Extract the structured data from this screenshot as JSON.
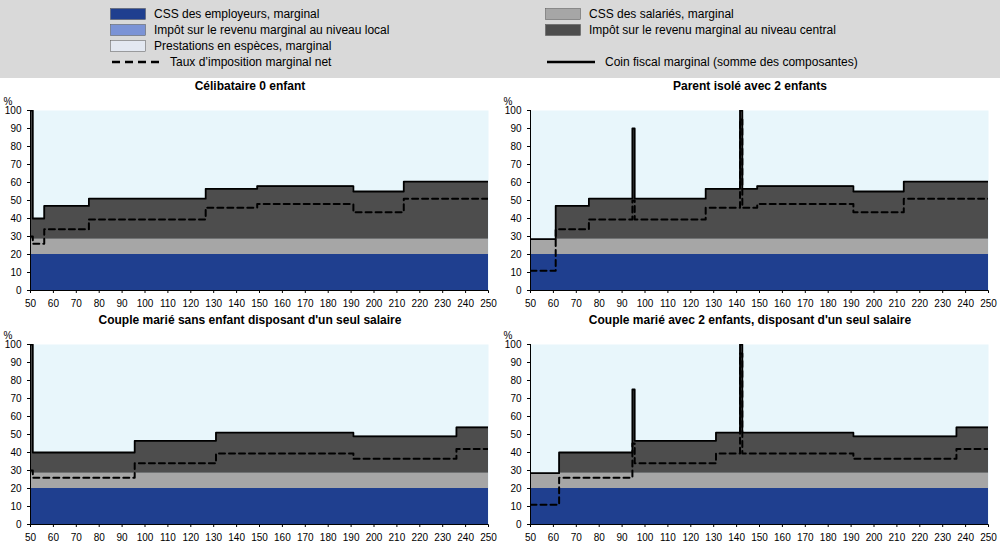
{
  "chart_data": [
    {
      "type": "area",
      "title": "Célibataire 0 enfant",
      "stacked": true,
      "grid": false,
      "ylim": [
        0,
        100
      ],
      "yticks": [
        0,
        10,
        20,
        30,
        40,
        50,
        60,
        70,
        80,
        90,
        100
      ],
      "y_label": "%",
      "xlim": [
        50,
        250
      ],
      "xticks": [
        50,
        60,
        70,
        80,
        90,
        100,
        110,
        120,
        130,
        140,
        150,
        160,
        170,
        180,
        190,
        200,
        210,
        220,
        230,
        240,
        250
      ],
      "x": [
        50,
        51,
        56,
        75.5,
        126.5,
        149,
        191,
        213,
        250
      ],
      "series": [
        {
          "name": "CSS des employeurs, marginal",
          "color": "#1f3f8f",
          "type": "area",
          "values": [
            20,
            20,
            20,
            20,
            20,
            20,
            20,
            20,
            20
          ]
        },
        {
          "name": "CSS des salariés, marginal",
          "color": "#a6a6a6",
          "type": "area",
          "values": [
            8.5,
            8.5,
            8.5,
            8.5,
            8.5,
            8.5,
            8.5,
            8.5,
            8.5
          ]
        },
        {
          "name": "Impôt sur le revenu marginal au niveau local",
          "color": "#7b93d6",
          "type": "area",
          "values": [
            0,
            0,
            0,
            0,
            0,
            0,
            0,
            0,
            0
          ]
        },
        {
          "name": "Impôt sur le revenu marginal au niveau central",
          "color": "#4d4d4d",
          "type": "area",
          "values": [
            71.5,
            11.5,
            18.5,
            22.5,
            28,
            29.5,
            26.5,
            32,
            32
          ]
        },
        {
          "name": "Prestations en espèces, marginal",
          "color": "#e3e8f1",
          "type": "area",
          "values": [
            0,
            0,
            0,
            0,
            0,
            0,
            0,
            0,
            0
          ]
        },
        {
          "name": "Taux d’imposition marginal net",
          "color": "#000000",
          "type": "line",
          "line_style": "dashed",
          "values": [
            30,
            26,
            34,
            39.5,
            46,
            48,
            43.5,
            51,
            51
          ]
        },
        {
          "name": "Coin fiscal marginal (somme des composantes)",
          "color": "#000000",
          "type": "line",
          "line_style": "solid",
          "values": [
            100,
            40,
            47,
            51,
            56.5,
            58,
            55,
            60.5,
            60.5
          ]
        }
      ]
    },
    {
      "type": "area",
      "title": "Parent isolé avec 2 enfants",
      "stacked": true,
      "grid": false,
      "ylim": [
        0,
        100
      ],
      "yticks": [
        0,
        10,
        20,
        30,
        40,
        50,
        60,
        70,
        80,
        90,
        100
      ],
      "y_label": "%",
      "xlim": [
        50,
        250
      ],
      "xticks": [
        50,
        60,
        70,
        80,
        90,
        100,
        110,
        120,
        130,
        140,
        150,
        160,
        170,
        180,
        190,
        200,
        210,
        220,
        230,
        240,
        250
      ],
      "x": [
        50,
        61,
        75.5,
        94.5,
        95.5,
        126.5,
        141.5,
        142.5,
        149,
        191,
        213,
        250
      ],
      "series": [
        {
          "name": "CSS des employeurs, marginal",
          "color": "#1f3f8f",
          "type": "area",
          "values": [
            20,
            20,
            20,
            20,
            20,
            20,
            20,
            20,
            20,
            20,
            20,
            20
          ]
        },
        {
          "name": "CSS des salariés, marginal",
          "color": "#a6a6a6",
          "type": "area",
          "values": [
            8.5,
            8.5,
            8.5,
            8.5,
            8.5,
            8.5,
            8.5,
            8.5,
            8.5,
            8.5,
            8.5,
            8.5
          ]
        },
        {
          "name": "Impôt sur le revenu marginal au niveau local",
          "color": "#7b93d6",
          "type": "area",
          "values": [
            0,
            0,
            0,
            0,
            0,
            0,
            0,
            0,
            0,
            0,
            0,
            0
          ]
        },
        {
          "name": "Impôt sur le revenu marginal au niveau central",
          "color": "#4d4d4d",
          "type": "area",
          "values": [
            0,
            18.5,
            22.5,
            61.5,
            22.5,
            28,
            71.5,
            28,
            29.5,
            26.5,
            32,
            32
          ]
        },
        {
          "name": "Prestations en espèces, marginal",
          "color": "#e3e8f1",
          "type": "area",
          "values": [
            0,
            0,
            0,
            0,
            0,
            0,
            0,
            0,
            0,
            0,
            0,
            0
          ]
        },
        {
          "name": "Taux d’imposition marginal net",
          "color": "#000000",
          "type": "line",
          "line_style": "dashed",
          "values": [
            11,
            34,
            39.5,
            50,
            39.5,
            46,
            95,
            46,
            48,
            43.5,
            51,
            51
          ]
        },
        {
          "name": "Coin fiscal marginal (somme des composantes)",
          "color": "#000000",
          "type": "line",
          "line_style": "solid",
          "values": [
            28.5,
            47,
            51,
            90,
            51,
            56.5,
            100,
            56.5,
            58,
            55,
            60.5,
            60.5
          ]
        }
      ]
    },
    {
      "type": "area",
      "title": "Couple marié sans enfant disposant d'un seul salaire",
      "stacked": true,
      "grid": false,
      "ylim": [
        0,
        100
      ],
      "yticks": [
        0,
        10,
        20,
        30,
        40,
        50,
        60,
        70,
        80,
        90,
        100
      ],
      "y_label": "%",
      "xlim": [
        50,
        250
      ],
      "xticks": [
        50,
        60,
        70,
        80,
        90,
        100,
        110,
        120,
        130,
        140,
        150,
        160,
        170,
        180,
        190,
        200,
        210,
        220,
        230,
        240,
        250
      ],
      "x": [
        50,
        51,
        95.5,
        131,
        191,
        236,
        250
      ],
      "series": [
        {
          "name": "CSS des employeurs, marginal",
          "color": "#1f3f8f",
          "type": "area",
          "values": [
            20,
            20,
            20,
            20,
            20,
            20,
            20
          ]
        },
        {
          "name": "CSS des salariés, marginal",
          "color": "#a6a6a6",
          "type": "area",
          "values": [
            8.5,
            8.5,
            8.5,
            8.5,
            8.5,
            8.5,
            8.5
          ]
        },
        {
          "name": "Impôt sur le revenu marginal au niveau local",
          "color": "#7b93d6",
          "type": "area",
          "values": [
            0,
            0,
            0,
            0,
            0,
            0,
            0
          ]
        },
        {
          "name": "Impôt sur le revenu marginal au niveau central",
          "color": "#4d4d4d",
          "type": "area",
          "values": [
            71.5,
            11.5,
            18,
            22.5,
            20.5,
            25.5,
            25.5
          ]
        },
        {
          "name": "Prestations en espèces, marginal",
          "color": "#e3e8f1",
          "type": "area",
          "values": [
            0,
            0,
            0,
            0,
            0,
            0,
            0
          ]
        },
        {
          "name": "Taux d’imposition marginal net",
          "color": "#000000",
          "type": "line",
          "line_style": "dashed",
          "values": [
            30,
            26,
            34,
            39.5,
            36.5,
            42,
            42
          ]
        },
        {
          "name": "Coin fiscal marginal (somme des composantes)",
          "color": "#000000",
          "type": "line",
          "line_style": "solid",
          "values": [
            100,
            40,
            46.5,
            51,
            49,
            54,
            54
          ]
        }
      ]
    },
    {
      "type": "area",
      "title": "Couple marié avec 2 enfants, disposant d'un seul salaire",
      "stacked": true,
      "grid": false,
      "ylim": [
        0,
        100
      ],
      "yticks": [
        0,
        10,
        20,
        30,
        40,
        50,
        60,
        70,
        80,
        90,
        100
      ],
      "y_label": "%",
      "xlim": [
        50,
        250
      ],
      "xticks": [
        50,
        60,
        70,
        80,
        90,
        100,
        110,
        120,
        130,
        140,
        150,
        160,
        170,
        180,
        190,
        200,
        210,
        220,
        230,
        240,
        250
      ],
      "x": [
        50,
        62.5,
        94.5,
        95.5,
        131,
        141.5,
        142.5,
        191,
        236,
        250
      ],
      "series": [
        {
          "name": "CSS des employeurs, marginal",
          "color": "#1f3f8f",
          "type": "area",
          "values": [
            20,
            20,
            20,
            20,
            20,
            20,
            20,
            20,
            20,
            20
          ]
        },
        {
          "name": "CSS des salariés, marginal",
          "color": "#a6a6a6",
          "type": "area",
          "values": [
            8.5,
            8.5,
            8.5,
            8.5,
            8.5,
            8.5,
            8.5,
            8.5,
            8.5,
            8.5
          ]
        },
        {
          "name": "Impôt sur le revenu marginal au niveau local",
          "color": "#7b93d6",
          "type": "area",
          "values": [
            0,
            0,
            0,
            0,
            0,
            0,
            0,
            0,
            0,
            0
          ]
        },
        {
          "name": "Impôt sur le revenu marginal au niveau central",
          "color": "#4d4d4d",
          "type": "area",
          "values": [
            0,
            11.5,
            46.5,
            18,
            22.5,
            71.5,
            22.5,
            20.5,
            25.5,
            25.5
          ]
        },
        {
          "name": "Prestations en espèces, marginal",
          "color": "#e3e8f1",
          "type": "area",
          "values": [
            0,
            0,
            0,
            0,
            0,
            0,
            0,
            0,
            0,
            0
          ]
        },
        {
          "name": "Taux d’imposition marginal net",
          "color": "#000000",
          "type": "line",
          "line_style": "dashed",
          "values": [
            11,
            26,
            45,
            34,
            39.5,
            95,
            39.5,
            36.5,
            42,
            42
          ]
        },
        {
          "name": "Coin fiscal marginal (somme des composantes)",
          "color": "#000000",
          "type": "line",
          "line_style": "solid",
          "values": [
            28.5,
            40,
            75,
            46.5,
            51,
            100,
            51,
            49,
            54,
            54
          ]
        }
      ]
    }
  ]
}
